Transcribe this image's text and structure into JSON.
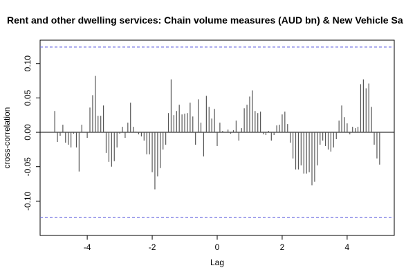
{
  "chart_data": {
    "type": "ccf",
    "title": "Rent and other dwelling services: Chain volume measures (AUD bn) & New Vehicle Sa",
    "xlabel": "Lag",
    "ylabel": "cross-correlation",
    "x": [
      -5,
      -4.917,
      -4.833,
      -4.75,
      -4.667,
      -4.583,
      -4.5,
      -4.417,
      -4.333,
      -4.25,
      -4.167,
      -4.083,
      -4,
      -3.917,
      -3.833,
      -3.75,
      -3.667,
      -3.583,
      -3.5,
      -3.417,
      -3.333,
      -3.25,
      -3.167,
      -3.083,
      -3,
      -2.917,
      -2.833,
      -2.75,
      -2.667,
      -2.583,
      -2.5,
      -2.417,
      -2.333,
      -2.25,
      -2.167,
      -2.083,
      -2,
      -1.917,
      -1.833,
      -1.75,
      -1.667,
      -1.583,
      -1.5,
      -1.417,
      -1.333,
      -1.25,
      -1.167,
      -1.083,
      -1,
      -0.917,
      -0.833,
      -0.75,
      -0.667,
      -0.583,
      -0.5,
      -0.417,
      -0.333,
      -0.25,
      -0.167,
      -0.083,
      0,
      0.083,
      0.167,
      0.25,
      0.333,
      0.417,
      0.5,
      0.583,
      0.667,
      0.75,
      0.833,
      0.917,
      1,
      1.083,
      1.167,
      1.25,
      1.333,
      1.417,
      1.5,
      1.583,
      1.667,
      1.75,
      1.833,
      1.917,
      2,
      2.083,
      2.167,
      2.25,
      2.333,
      2.417,
      2.5,
      2.583,
      2.667,
      2.75,
      2.833,
      2.917,
      3,
      3.083,
      3.167,
      3.25,
      3.333,
      3.417,
      3.5,
      3.583,
      3.667,
      3.75,
      3.833,
      3.917,
      4,
      4.083,
      4.167,
      4.25,
      4.333,
      4.417,
      4.5,
      4.583,
      4.667,
      4.75,
      4.833,
      4.917,
      5
    ],
    "values": [
      0.031,
      -0.014,
      -0.005,
      0.011,
      -0.015,
      -0.018,
      -0.022,
      -0.002,
      -0.022,
      -0.057,
      0.011,
      0,
      -0.008,
      0.036,
      0.054,
      0.082,
      0.024,
      0.024,
      0.039,
      -0.03,
      -0.043,
      -0.05,
      -0.042,
      -0.022,
      -0.002,
      0.008,
      -0.008,
      0.014,
      0.043,
      0.008,
      0.001,
      -0.003,
      -0.006,
      -0.012,
      -0.032,
      -0.032,
      -0.058,
      -0.083,
      -0.064,
      -0.052,
      -0.025,
      -0.018,
      0.028,
      0.077,
      0.025,
      0.031,
      0.04,
      0.026,
      0.027,
      0.028,
      0.043,
      0.023,
      -0.018,
      0.048,
      0.014,
      -0.035,
      0.053,
      0.037,
      0.02,
      0.034,
      -0.02,
      0.014,
      0.002,
      0,
      0.004,
      -0.002,
      0.003,
      0.017,
      -0.012,
      0.006,
      0.035,
      0.04,
      0.052,
      0.061,
      0.031,
      0.028,
      0.03,
      -0.003,
      -0.004,
      0.002,
      -0.012,
      -0.004,
      0.01,
      0.011,
      0.026,
      0.03,
      0.012,
      -0.015,
      -0.038,
      -0.054,
      -0.054,
      -0.048,
      -0.06,
      -0.06,
      -0.058,
      -0.077,
      -0.072,
      -0.048,
      -0.018,
      -0.012,
      -0.02,
      -0.025,
      -0.028,
      -0.022,
      -0.01,
      0.017,
      0.039,
      0.022,
      0.013,
      -0.003,
      0.008,
      0.006,
      0.008,
      0.07,
      0.077,
      0.064,
      0.071,
      0.037,
      -0.018,
      -0.038,
      -0.047
    ],
    "color": "#555555",
    "confidence_bounds": [
      0.124,
      -0.124
    ],
    "bound_color": "#6a6ae0",
    "xlim": [
      -5.45,
      5.45
    ],
    "xticks": [
      -4,
      -2,
      0,
      2,
      4
    ],
    "ylim": [
      -0.15,
      0.134
    ],
    "yticks": [
      {
        "value": -0.1,
        "label": "-0.10"
      },
      {
        "value": -0.05,
        "label": "-0.05"
      },
      {
        "value": 0,
        "label": "0.00"
      },
      {
        "value": 0.05,
        "label": "0.05"
      },
      {
        "value": 0.1,
        "label": "0.10"
      }
    ]
  }
}
